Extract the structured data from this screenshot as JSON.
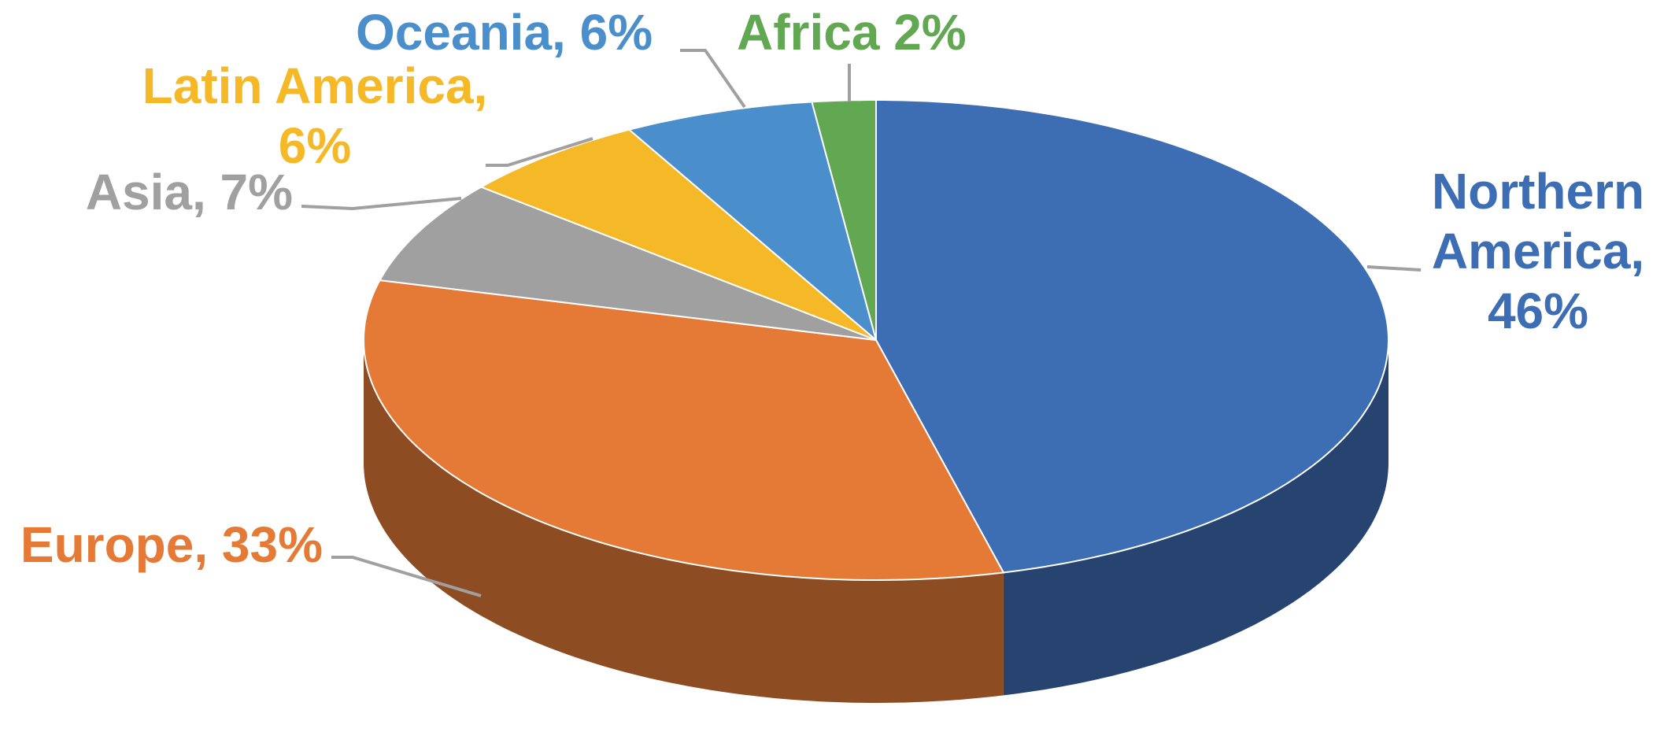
{
  "chart_data": {
    "type": "pie",
    "values": [
      46,
      33,
      7,
      6,
      6,
      2
    ],
    "value_labels": [
      "Northern America, 46%",
      "Europe, 33%",
      "Asia, 7%",
      "Latin America, 6%",
      "Oceania, 6%",
      "Africa 2%"
    ],
    "colors": [
      "#3d6db3",
      "#e57a37",
      "#a0a0a0",
      "#f5b827",
      "#4a8fcb",
      "#62a752"
    ]
  }
}
